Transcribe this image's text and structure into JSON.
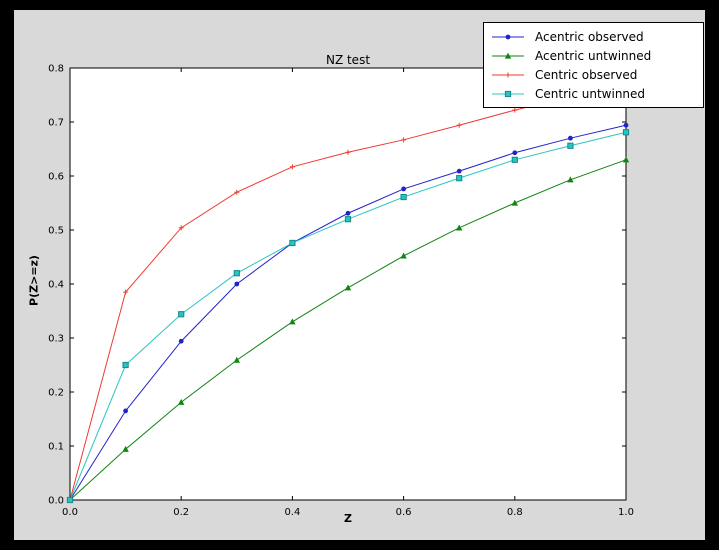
{
  "figure": {
    "background_color": "#d9d9d9",
    "outer_border_color": "#000000"
  },
  "chart_data": {
    "type": "line",
    "title": "NZ test",
    "xlabel": "Z",
    "ylabel": "P(Z>=z)",
    "xlim": [
      0.0,
      1.0
    ],
    "ylim": [
      0.0,
      0.8
    ],
    "xticks": [
      0.0,
      0.2,
      0.4,
      0.6,
      0.8,
      1.0
    ],
    "yticks": [
      0.0,
      0.1,
      0.2,
      0.3,
      0.4,
      0.5,
      0.6,
      0.7,
      0.8
    ],
    "grid": false,
    "axes_facecolor": "#ffffff",
    "frame_color": "#000000",
    "legend_position": "upper right",
    "x": [
      0.0,
      0.1,
      0.2,
      0.3,
      0.4,
      0.5,
      0.6,
      0.7,
      0.8,
      0.9,
      1.0
    ],
    "series": [
      {
        "name": "Acentric observed",
        "color": "#2222cc",
        "marker": "circle",
        "values": [
          0.0,
          0.165,
          0.294,
          0.4,
          0.476,
          0.531,
          0.576,
          0.609,
          0.643,
          0.67,
          0.694
        ]
      },
      {
        "name": "Acentric untwinned",
        "color": "#128412",
        "marker": "triangle",
        "values": [
          0.0,
          0.094,
          0.181,
          0.259,
          0.33,
          0.393,
          0.452,
          0.504,
          0.55,
          0.593,
          0.63
        ]
      },
      {
        "name": "Centric observed",
        "color": "#ee3b2e",
        "marker": "plus",
        "values": [
          0.0,
          0.385,
          0.504,
          0.57,
          0.617,
          0.644,
          0.667,
          0.694,
          0.722,
          0.747,
          0.77
        ]
      },
      {
        "name": "Centric untwinned",
        "color": "#2cc3c3",
        "marker": "square",
        "marker_edge_color": "#118a8a",
        "values": [
          0.0,
          0.25,
          0.344,
          0.42,
          0.476,
          0.52,
          0.561,
          0.596,
          0.63,
          0.656,
          0.681
        ]
      }
    ]
  }
}
